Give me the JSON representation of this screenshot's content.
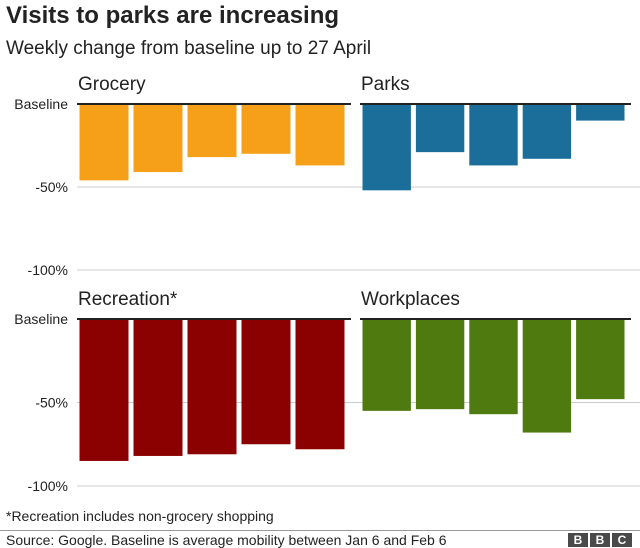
{
  "title": "Visits to parks are increasing",
  "subtitle": "Weekly change from baseline up to 27 April",
  "footnote": "*Recreation includes non-grocery shopping",
  "source": "Source: Google. Baseline is average mobility between Jan 6 and Feb 6",
  "logo": [
    "B",
    "B",
    "C"
  ],
  "colors": {
    "grocery": "#f6a01a",
    "parks": "#1a6e99",
    "recreation": "#8b0000",
    "workplaces": "#4e7a0f",
    "grid": "#cccccc",
    "baseline": "#222222"
  },
  "chart_data": {
    "type": "bar",
    "title": "Visits to parks are increasing",
    "subtitle": "Weekly change from baseline up to 27 April",
    "ylim": [
      -100,
      0
    ],
    "yticks": [
      {
        "value": 0,
        "label": "Baseline"
      },
      {
        "value": -50,
        "label": "-50%"
      },
      {
        "value": -100,
        "label": "-100%"
      }
    ],
    "panels": [
      {
        "name": "Grocery",
        "color": "#f6a01a",
        "values": [
          -46,
          -41,
          -32,
          -30,
          -37
        ]
      },
      {
        "name": "Parks",
        "color": "#1a6e99",
        "values": [
          -52,
          -29,
          -37,
          -33,
          -10
        ]
      },
      {
        "name": "Recreation*",
        "color": "#8b0000",
        "values": [
          -85,
          -82,
          -81,
          -75,
          -78
        ]
      },
      {
        "name": "Workplaces",
        "color": "#4e7a0f",
        "values": [
          -55,
          -54,
          -57,
          -68,
          -48
        ]
      }
    ]
  }
}
